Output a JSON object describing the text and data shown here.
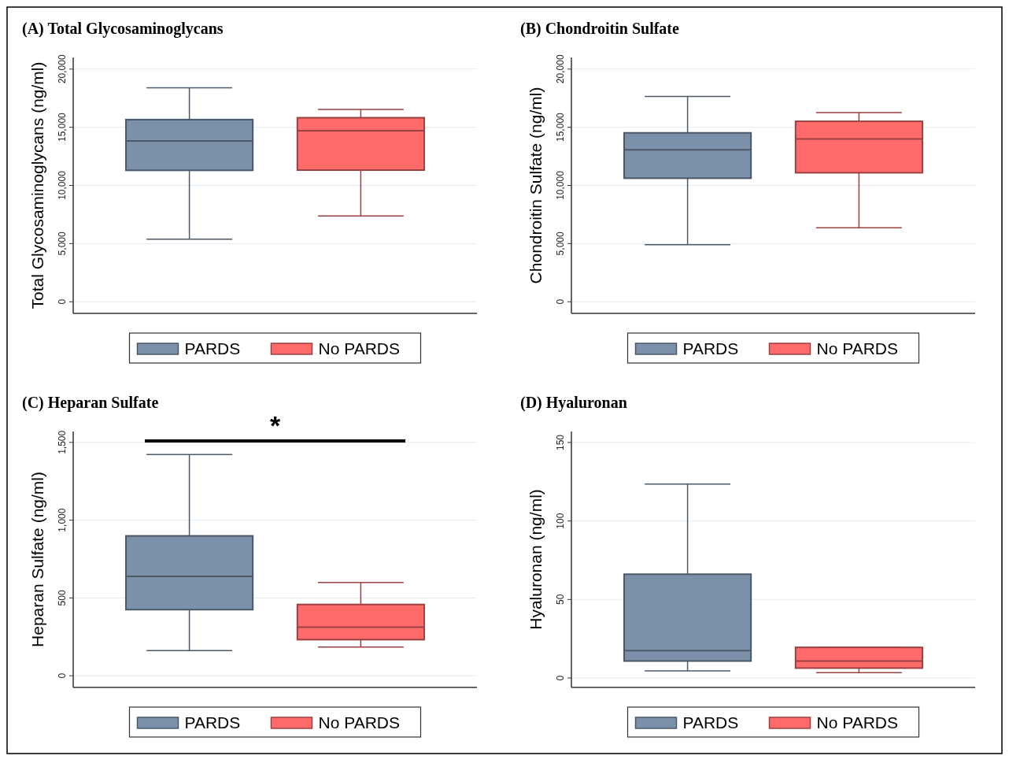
{
  "chart_data": [
    {
      "type": "box",
      "title": "(A) Total Glycosaminoglycans",
      "ylabel": "Total Glycosaminoglycans (ng/ml)",
      "categories": [
        null
      ],
      "ylim": [
        -1000,
        21000
      ],
      "yticks": [
        0,
        {
          "value": 5000,
          "label": "5,000"
        },
        {
          "value": 10000,
          "label": "10,000"
        },
        {
          "value": 15000,
          "label": "15,000"
        },
        {
          "value": 20000,
          "label": "20,000"
        }
      ],
      "grid": "y",
      "legend": "bottom",
      "tick_labels": "y",
      "series": [
        {
          "name": "PARDS",
          "color": "#7b91aa",
          "boxes": [
            {
              "low": 5380,
              "q1": 11300,
              "median": 13830,
              "q3": 15660,
              "high": 18400
            }
          ]
        },
        {
          "name": "No PARDS",
          "color": "#ff6b6b",
          "boxes": [
            {
              "low": 7380,
              "q1": 11320,
              "median": 14700,
              "q3": 15820,
              "high": 16540
            }
          ]
        }
      ]
    },
    {
      "type": "box",
      "title": "(B) Chondroitin Sulfate",
      "ylabel": "Chondroitin Sulfate (ng/ml)",
      "categories": [
        null
      ],
      "ylim": [
        -1000,
        21000
      ],
      "yticks": [
        0,
        {
          "value": 5000,
          "label": "5,000"
        },
        {
          "value": 10000,
          "label": "10,000"
        },
        {
          "value": 15000,
          "label": "15,000"
        },
        {
          "value": 20000,
          "label": "20,000"
        }
      ],
      "grid": "y",
      "legend": "bottom",
      "tick_labels": "y",
      "series": [
        {
          "name": "PARDS",
          "color": "#7b91aa",
          "boxes": [
            {
              "low": 4910,
              "q1": 10620,
              "median": 13070,
              "q3": 14520,
              "high": 17650
            }
          ]
        },
        {
          "name": "No PARDS",
          "color": "#ff6b6b",
          "boxes": [
            {
              "low": 6370,
              "q1": 11090,
              "median": 14000,
              "q3": 15510,
              "high": 16260
            }
          ]
        }
      ]
    },
    {
      "type": "box",
      "title": "(C) Heparan Sulfate",
      "ylabel": "Heparan Sulfate (ng/ml)",
      "categories": [
        null
      ],
      "ylim": [
        -75,
        1570
      ],
      "yticks": [
        0,
        500,
        {
          "value": 1000,
          "label": "1,000"
        },
        {
          "value": 1500,
          "label": "1,500"
        }
      ],
      "grid": "y",
      "legend": "bottom",
      "tick_labels": "y",
      "annotations": [
        "*"
      ],
      "series": [
        {
          "name": "PARDS",
          "color": "#7b91aa",
          "boxes": [
            {
              "low": 162,
              "q1": 425,
              "median": 639,
              "q3": 899,
              "high": 1422
            }
          ]
        },
        {
          "name": "No PARDS",
          "color": "#ff6b6b",
          "boxes": [
            {
              "low": 185,
              "q1": 232,
              "median": 312,
              "q3": 458,
              "high": 599
            }
          ]
        }
      ]
    },
    {
      "type": "box",
      "title": "(D) Hyaluronan",
      "ylabel": "Hyaluronan (ng/ml)",
      "categories": [
        null
      ],
      "ylim": [
        -6,
        157
      ],
      "yticks": [
        0,
        50,
        100,
        150
      ],
      "grid": "y",
      "legend": "bottom",
      "tick_labels": "y",
      "series": [
        {
          "name": "PARDS",
          "color": "#7b91aa",
          "boxes": [
            {
              "low": 4.5,
              "q1": 10.8,
              "median": 17.4,
              "q3": 66.1,
              "high": 123.5
            }
          ]
        },
        {
          "name": "No PARDS",
          "color": "#ff6b6b",
          "boxes": [
            {
              "low": 3.4,
              "q1": 6.3,
              "median": 10.8,
              "q3": 19.5,
              "high": 19.5
            }
          ]
        }
      ]
    }
  ]
}
